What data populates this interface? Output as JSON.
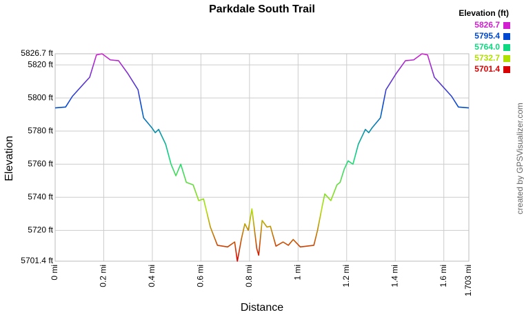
{
  "chart_data": {
    "type": "line",
    "title": "Parkdale South Trail",
    "x_label": "Distance",
    "y_label": "Elevation",
    "credit": "created by GPSVisualizer.com",
    "legend_title": "Elevation (ft)",
    "legend": [
      {
        "value": 5826.7,
        "label": "5826.7",
        "color": "#d020d0"
      },
      {
        "value": 5795.4,
        "label": "5795.4",
        "color": "#0048d0"
      },
      {
        "value": 5764,
        "label": "5764.0",
        "color": "#10d880"
      },
      {
        "value": 5732.7,
        "label": "5732.7",
        "color": "#b0e000"
      },
      {
        "value": 5701.4,
        "label": "5701.4",
        "color": "#d80000"
      }
    ],
    "xlim": [
      0,
      1.703
    ],
    "ylim": [
      5701.4,
      5826.7
    ],
    "xticks": [
      {
        "value": 0,
        "label": "0 mi"
      },
      {
        "value": 0.2,
        "label": "0.2 mi"
      },
      {
        "value": 0.4,
        "label": "0.4 mi"
      },
      {
        "value": 0.6,
        "label": "0.6 mi"
      },
      {
        "value": 0.8,
        "label": "0.8 mi"
      },
      {
        "value": 1,
        "label": "1 mi"
      },
      {
        "value": 1.2,
        "label": "1.2 mi"
      },
      {
        "value": 1.4,
        "label": "1.4 mi"
      },
      {
        "value": 1.6,
        "label": "1.6 mi"
      },
      {
        "value": 1.703,
        "label": "1.703 mi"
      }
    ],
    "yticks": [
      {
        "value": 5701.4,
        "label": "5701.4 ft"
      },
      {
        "value": 5720,
        "label": "5720 ft"
      },
      {
        "value": 5740,
        "label": "5740 ft"
      },
      {
        "value": 5760,
        "label": "5760 ft"
      },
      {
        "value": 5780,
        "label": "5780 ft"
      },
      {
        "value": 5800,
        "label": "5800 ft"
      },
      {
        "value": 5820,
        "label": "5820 ft"
      },
      {
        "value": 5826.7,
        "label": "5826.7 ft"
      }
    ],
    "grid": true,
    "x": [
      0,
      0.043,
      0.071,
      0.114,
      0.142,
      0.17,
      0.193,
      0.227,
      0.261,
      0.298,
      0.341,
      0.364,
      0.398,
      0.412,
      0.426,
      0.455,
      0.477,
      0.497,
      0.517,
      0.54,
      0.568,
      0.591,
      0.611,
      0.639,
      0.668,
      0.71,
      0.739,
      0.75,
      0.767,
      0.781,
      0.795,
      0.81,
      0.83,
      0.838,
      0.852,
      0.872,
      0.886,
      0.909,
      0.938,
      0.96,
      0.98,
      1.009,
      1.065,
      1.08,
      1.1,
      1.11,
      1.135,
      1.16,
      1.173,
      1.19,
      1.206,
      1.226,
      1.248,
      1.277,
      1.291,
      1.305,
      1.339,
      1.362,
      1.405,
      1.442,
      1.476,
      1.51,
      1.533,
      1.561,
      1.589,
      1.632,
      1.66,
      1.703
    ],
    "values": [
      5794,
      5794.5,
      5801,
      5808,
      5812.5,
      5826,
      5826.7,
      5823,
      5822.5,
      5815,
      5805,
      5788,
      5782,
      5779,
      5781,
      5772,
      5760,
      5753,
      5760,
      5749,
      5747.5,
      5738,
      5739,
      5722,
      5711,
      5710,
      5713,
      5701.4,
      5715,
      5724,
      5720,
      5733,
      5709,
      5705,
      5726,
      5722,
      5722.5,
      5710.5,
      5713,
      5711,
      5714.5,
      5710,
      5711,
      5720,
      5735,
      5742,
      5738,
      5747.5,
      5749,
      5757,
      5762,
      5760,
      5772,
      5781,
      5779,
      5782,
      5788,
      5805,
      5815,
      5822.5,
      5823,
      5826.7,
      5826,
      5812.5,
      5808,
      5801,
      5794.5,
      5794
    ]
  }
}
